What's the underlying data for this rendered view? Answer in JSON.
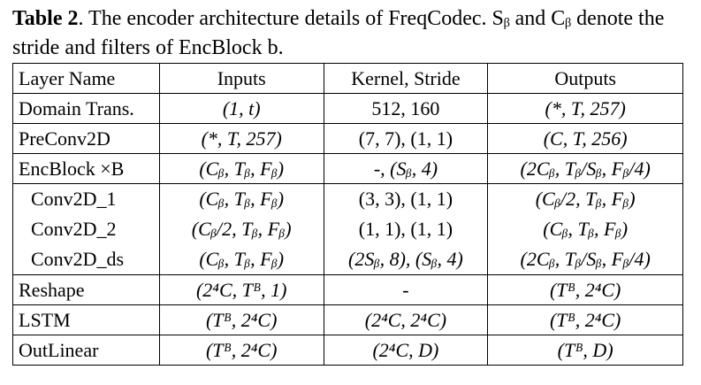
{
  "caption": {
    "label": "Table 2",
    "text": ". The encoder architecture details of FreqCodec. Sᵦ and Cᵦ denote the stride and filters of EncBlock b."
  },
  "table": {
    "headers": [
      "Layer Name",
      "Inputs",
      "Kernel, Stride",
      "Outputs"
    ],
    "rows": [
      [
        "Domain Trans.",
        "(1, t)",
        "512, 160",
        "(*, T, 257)"
      ],
      [
        "PreConv2D",
        "(*, T, 257)",
        "(7, 7), (1, 1)",
        "(C, T, 256)"
      ],
      [
        "EncBlock ×B",
        "(Cᵦ, Tᵦ, Fᵦ)",
        "-, (Sᵦ, 4)",
        "(2Cᵦ, Tᵦ/Sᵦ, Fᵦ/4)"
      ],
      [
        "Conv2D_1",
        "(Cᵦ, Tᵦ, Fᵦ)",
        "(3, 3), (1, 1)",
        "(Cᵦ/2, Tᵦ, Fᵦ)"
      ],
      [
        "Conv2D_2",
        "(Cᵦ/2, Tᵦ, Fᵦ)",
        "(1, 1), (1, 1)",
        "(Cᵦ, Tᵦ, Fᵦ)"
      ],
      [
        "Conv2D_ds",
        "(Cᵦ, Tᵦ, Fᵦ)",
        "(2Sᵦ, 8), (Sᵦ, 4)",
        "(2Cᵦ, Tᵦ/Sᵦ, Fᵦ/4)"
      ],
      [
        "Reshape",
        "(2⁴C, Tᴮ, 1)",
        "-",
        "(Tᴮ, 2⁴C)"
      ],
      [
        "LSTM",
        "(Tᴮ, 2⁴C)",
        "(2⁴C, 2⁴C)",
        "(Tᴮ, 2⁴C)"
      ],
      [
        "OutLinear",
        "(Tᴮ, 2⁴C)",
        "(2⁴C, D)",
        "(Tᴮ, D)"
      ]
    ]
  }
}
